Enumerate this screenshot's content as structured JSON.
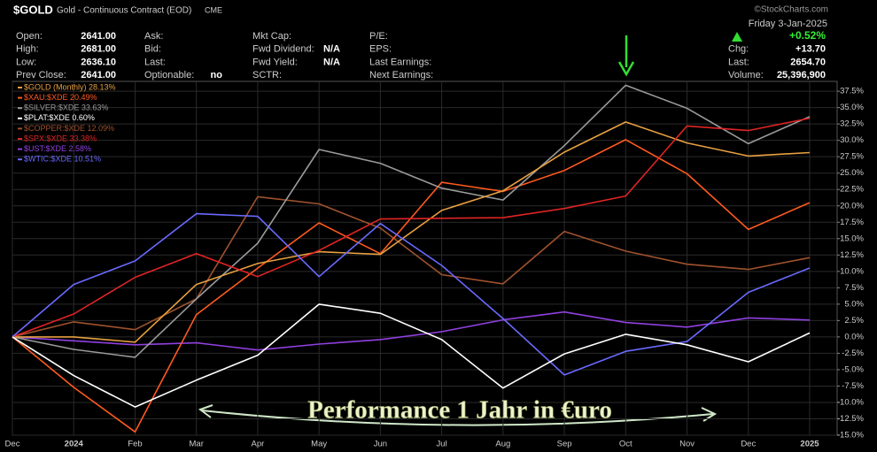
{
  "header": {
    "symbol": "$GOLD",
    "description": "Gold - Continuous Contract (EOD)",
    "exchange": "CME",
    "copyright": "©StockCharts.com",
    "date": "Friday 3-Jan-2025",
    "change_pct": "+0.52%",
    "quote_columns": [
      [
        {
          "label": "Open:",
          "value": "2641.00"
        },
        {
          "label": "High:",
          "value": "2681.00"
        },
        {
          "label": "Low:",
          "value": "2636.10"
        },
        {
          "label": "Prev Close:",
          "value": "2641.00"
        }
      ],
      [
        {
          "label": "Ask:"
        },
        {
          "label": "Bid:"
        },
        {
          "label": "Last:"
        },
        {
          "label": "Optionable:",
          "value": "no"
        }
      ],
      [
        {
          "label": "Mkt Cap:"
        },
        {
          "label": "Fwd Dividend:",
          "value": "N/A"
        },
        {
          "label": "Fwd Yield:",
          "value": "N/A"
        },
        {
          "label": "SCTR:"
        }
      ],
      [
        {
          "label": "P/E:"
        },
        {
          "label": "EPS:"
        },
        {
          "label": "Last Earnings:"
        },
        {
          "label": "Next Earnings:"
        }
      ]
    ],
    "right_quote": [
      {
        "label": "Chg:",
        "value": "+13.70"
      },
      {
        "label": "Last:",
        "value": "2654.70"
      },
      {
        "label": "Volume:",
        "value": "25,396,900"
      }
    ]
  },
  "chart_data": {
    "type": "line",
    "annotation": "Performance 1 Jahr in €uro",
    "categories": [
      "Dec",
      "2024",
      "Feb",
      "Mar",
      "Apr",
      "May",
      "Jun",
      "Jul",
      "Aug",
      "Sep",
      "Oct",
      "Nov",
      "Dec",
      "2025"
    ],
    "ylim": [
      -15,
      39
    ],
    "yticks": [
      {
        "value": -15,
        "label": "-15.0%"
      },
      {
        "value": -12.5,
        "label": "-12.5%"
      },
      {
        "value": -10,
        "label": "-10.0%"
      },
      {
        "value": -7.5,
        "label": "-7.5%"
      },
      {
        "value": -5,
        "label": "-5.0%"
      },
      {
        "value": -2.5,
        "label": "-2.5%"
      },
      {
        "value": 0,
        "label": "0.0%"
      },
      {
        "value": 2.5,
        "label": "2.5%"
      },
      {
        "value": 5,
        "label": "5.0%"
      },
      {
        "value": 7.5,
        "label": "7.5%"
      },
      {
        "value": 10,
        "label": "10.0%"
      },
      {
        "value": 12.5,
        "label": "12.5%"
      },
      {
        "value": 15,
        "label": "15.0%"
      },
      {
        "value": 17.5,
        "label": "17.5%"
      },
      {
        "value": 20,
        "label": "20.0%"
      },
      {
        "value": 22.5,
        "label": "22.5%"
      },
      {
        "value": 25,
        "label": "25.0%"
      },
      {
        "value": 27.5,
        "label": "27.5%"
      },
      {
        "value": 30,
        "label": "30.0%"
      },
      {
        "value": 32.5,
        "label": "32.5%"
      },
      {
        "value": 35,
        "label": "35.0%"
      },
      {
        "value": 37.5,
        "label": "37.5%"
      }
    ],
    "grid": true,
    "legend": "upper left",
    "series": [
      {
        "name": "$GOLD (Monthly) 28.13%",
        "color": "#e8a040",
        "values": [
          0,
          0,
          -0.8,
          8.0,
          11.2,
          13.0,
          12.6,
          19.3,
          22.3,
          28.2,
          32.8,
          29.6,
          27.6,
          28.13
        ]
      },
      {
        "name": "$XAU:$XDE 20.49%",
        "color": "#ff5a1e",
        "values": [
          0,
          -7.7,
          -14.5,
          3.4,
          10.5,
          17.4,
          12.7,
          23.6,
          22.2,
          25.4,
          30.1,
          24.9,
          16.4,
          20.49
        ]
      },
      {
        "name": "$SILVER:$XDE 33.63%",
        "color": "#9a9a9a",
        "values": [
          0,
          -1.9,
          -3.1,
          5.8,
          14.3,
          28.6,
          26.5,
          22.7,
          20.9,
          29.2,
          38.4,
          34.9,
          29.5,
          33.63
        ]
      },
      {
        "name": "$PLAT:$XDE 0.60%",
        "color": "#ffffff",
        "values": [
          0,
          -5.9,
          -10.7,
          -6.6,
          -2.8,
          5.0,
          3.6,
          -0.4,
          -7.8,
          -2.6,
          0.4,
          -1.2,
          -3.8,
          0.6
        ]
      },
      {
        "name": "$COPPER:$XDE 12.09%",
        "color": "#a0522d",
        "values": [
          0,
          2.3,
          1.1,
          5.8,
          21.4,
          20.3,
          16.6,
          9.5,
          8.1,
          16.1,
          13.1,
          11.1,
          10.3,
          12.09
        ]
      },
      {
        "name": "$SPX:$XDE 33.38%",
        "color": "#e02424",
        "values": [
          0,
          3.5,
          9.1,
          12.7,
          9.2,
          13.2,
          18.0,
          18.1,
          18.2,
          19.6,
          21.5,
          32.2,
          31.5,
          33.38
        ]
      },
      {
        "name": "$UST:$XDE 2.58%",
        "color": "#9040e0",
        "values": [
          0,
          -0.6,
          -1.2,
          -0.9,
          -2.0,
          -1.1,
          -0.4,
          0.8,
          2.6,
          3.8,
          2.2,
          1.5,
          2.9,
          2.58
        ]
      },
      {
        "name": "$WTIC:$XDE 10.51%",
        "color": "#6a6aff",
        "values": [
          0,
          8.0,
          11.6,
          18.8,
          18.4,
          9.2,
          17.3,
          10.9,
          2.8,
          -5.8,
          -2.2,
          -0.7,
          6.8,
          10.51
        ]
      }
    ]
  }
}
